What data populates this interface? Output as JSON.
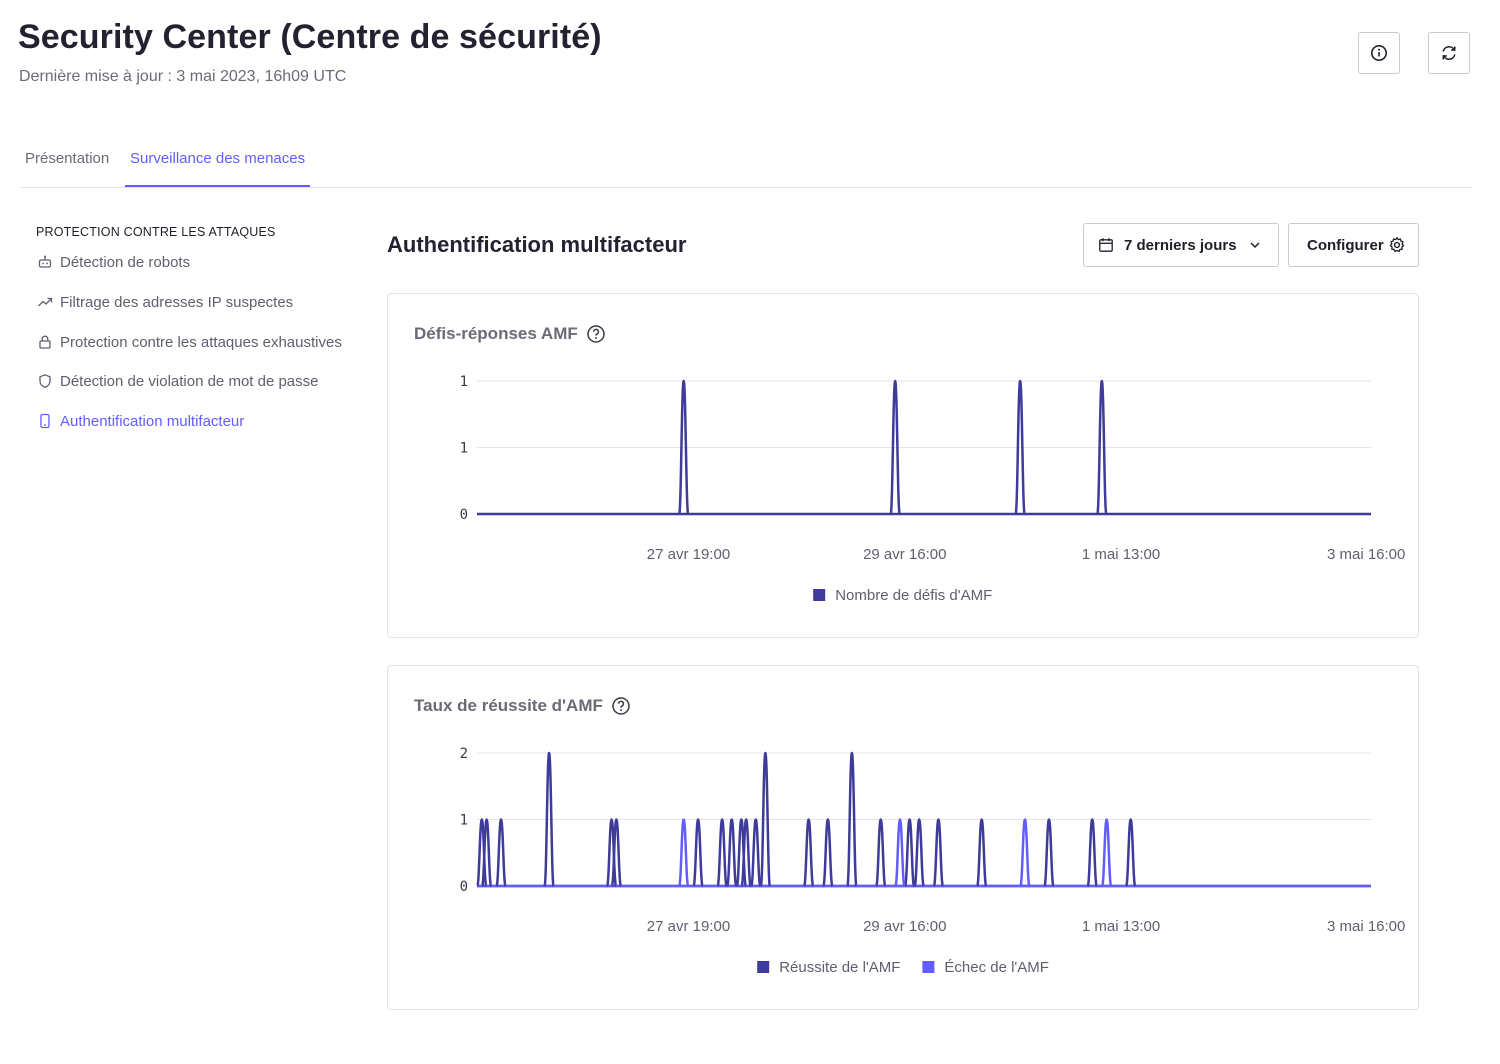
{
  "header": {
    "title": "Security Center (Centre de sécurité)",
    "subtitle": "Dernière mise à jour : 3 mai 2023, 16h09 UTC"
  },
  "tabs": [
    {
      "label": "Présentation",
      "active": false
    },
    {
      "label": "Surveillance des menaces",
      "active": true
    }
  ],
  "sidebar": {
    "heading": "PROTECTION CONTRE LES ATTAQUES",
    "items": [
      {
        "label": "Détection de robots",
        "icon": "robot-icon"
      },
      {
        "label": "Filtrage des adresses IP suspectes",
        "icon": "trend-icon"
      },
      {
        "label": "Protection contre les attaques exhaustives",
        "icon": "lock-icon"
      },
      {
        "label": "Détection de violation de mot de passe",
        "icon": "shield-icon"
      },
      {
        "label": "Authentification multifacteur",
        "icon": "phone-icon",
        "active": true
      }
    ]
  },
  "main": {
    "title": "Authentification multifacteur",
    "range_label": "7 derniers jours",
    "configure_label": "Configurer"
  },
  "colors": {
    "accent": "#635dff",
    "series_success": "#3f3b9a",
    "series_failure": "#635dff"
  },
  "chart_data": [
    {
      "type": "line",
      "title": "Défis-réponses AMF",
      "y_tick_labels": [
        "1",
        "1",
        "0"
      ],
      "x_tick_labels": [
        "27 avr 19:00",
        "29 avr 16:00",
        "1 mai 13:00",
        "3 mai 16:00"
      ],
      "x_ticks_hours": [
        44,
        89,
        134,
        185
      ],
      "x_range_hours": [
        0,
        186
      ],
      "ylim": [
        0,
        1
      ],
      "series": [
        {
          "name": "Nombre de défis d'AMF",
          "color": "#3f3b9a",
          "spikes": [
            {
              "x": 43,
              "value": 1
            },
            {
              "x": 87,
              "value": 1
            },
            {
              "x": 113,
              "value": 1
            },
            {
              "x": 130,
              "value": 1
            }
          ]
        }
      ]
    },
    {
      "type": "line",
      "title": "Taux de réussite d'AMF",
      "y_tick_labels": [
        "2",
        "1",
        "0"
      ],
      "x_tick_labels": [
        "27 avr 19:00",
        "29 avr 16:00",
        "1 mai 13:00",
        "3 mai 16:00"
      ],
      "x_ticks_hours": [
        44,
        89,
        134,
        185
      ],
      "x_range_hours": [
        0,
        186
      ],
      "ylim": [
        0,
        2
      ],
      "series": [
        {
          "name": "Réussite de l'AMF",
          "color": "#3f3b9a",
          "spikes": [
            {
              "x": 1,
              "value": 1
            },
            {
              "x": 2,
              "value": 1
            },
            {
              "x": 5,
              "value": 1
            },
            {
              "x": 15,
              "value": 2
            },
            {
              "x": 28,
              "value": 1
            },
            {
              "x": 29,
              "value": 1
            },
            {
              "x": 46,
              "value": 1
            },
            {
              "x": 51,
              "value": 1
            },
            {
              "x": 53,
              "value": 1
            },
            {
              "x": 55,
              "value": 1
            },
            {
              "x": 56,
              "value": 1
            },
            {
              "x": 58,
              "value": 1
            },
            {
              "x": 60,
              "value": 2
            },
            {
              "x": 69,
              "value": 1
            },
            {
              "x": 73,
              "value": 1
            },
            {
              "x": 78,
              "value": 2
            },
            {
              "x": 84,
              "value": 1
            },
            {
              "x": 90,
              "value": 1
            },
            {
              "x": 92,
              "value": 1
            },
            {
              "x": 96,
              "value": 1
            },
            {
              "x": 105,
              "value": 1
            },
            {
              "x": 119,
              "value": 1
            },
            {
              "x": 128,
              "value": 1
            },
            {
              "x": 136,
              "value": 1
            }
          ]
        },
        {
          "name": "Échec de l'AMF",
          "color": "#635dff",
          "spikes": [
            {
              "x": 43,
              "value": 1
            },
            {
              "x": 88,
              "value": 1
            },
            {
              "x": 114,
              "value": 1
            },
            {
              "x": 131,
              "value": 1
            }
          ]
        }
      ]
    }
  ]
}
